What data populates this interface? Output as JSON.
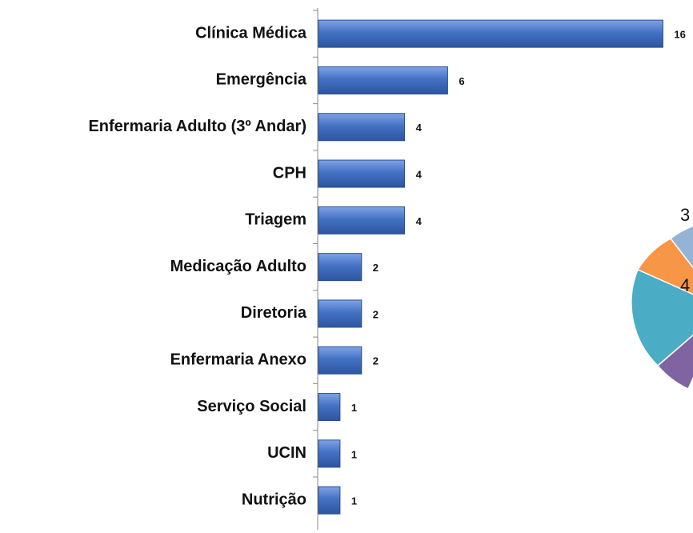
{
  "chart_data": {
    "type": "bar",
    "orientation": "horizontal",
    "categories": [
      "Clínica Médica",
      "Emergência",
      "Enfermaria Adulto (3º Andar)",
      "CPH",
      "Triagem",
      "Medicação Adulto",
      "Diretoria",
      "Enfermaria Anexo",
      "Serviço Social",
      "UCIN",
      "Nutrição"
    ],
    "values": [
      16,
      6,
      4,
      4,
      4,
      2,
      2,
      2,
      1,
      1,
      1
    ],
    "color": "#4472c4"
  },
  "clipped_pie": {
    "labels": [
      "3",
      "4"
    ]
  }
}
